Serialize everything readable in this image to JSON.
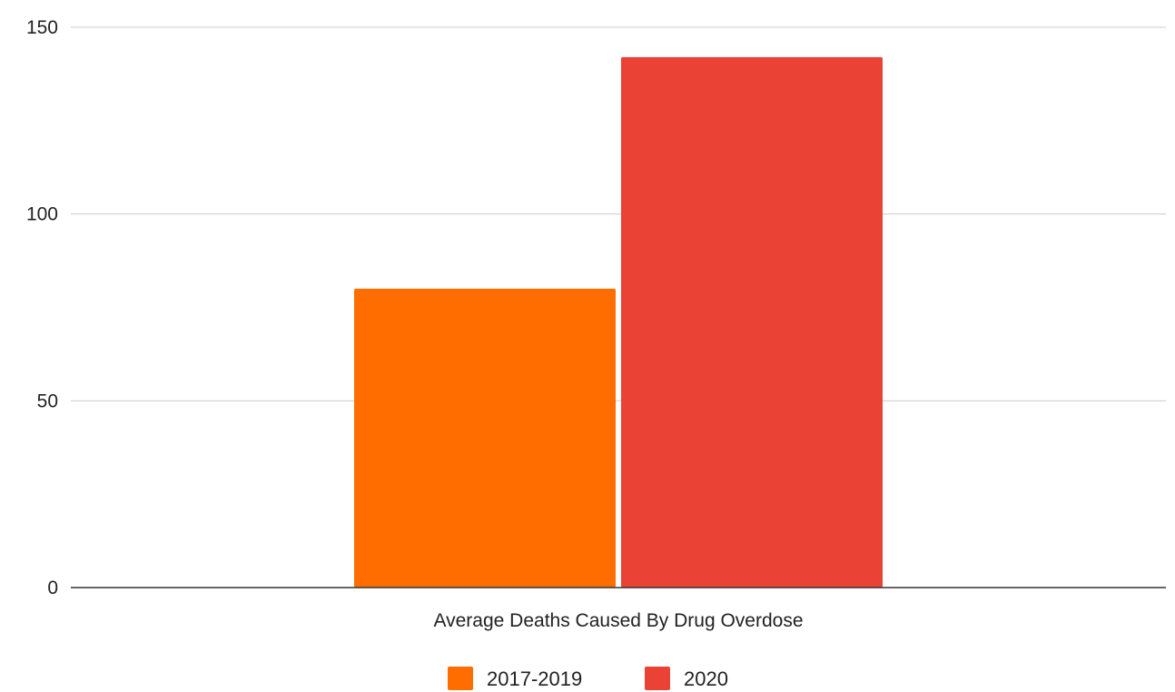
{
  "chart_data": {
    "type": "bar",
    "categories": [
      "Average Deaths Caused By Drug Overdose"
    ],
    "series": [
      {
        "name": "2017-2019",
        "values": [
          80
        ],
        "color": "#ff6d01"
      },
      {
        "name": "2020",
        "values": [
          142
        ],
        "color": "#ea4335"
      }
    ],
    "ylim": [
      0,
      150
    ],
    "yticks": [
      0,
      50,
      100,
      150
    ],
    "grid": true,
    "legend_position": "bottom"
  }
}
